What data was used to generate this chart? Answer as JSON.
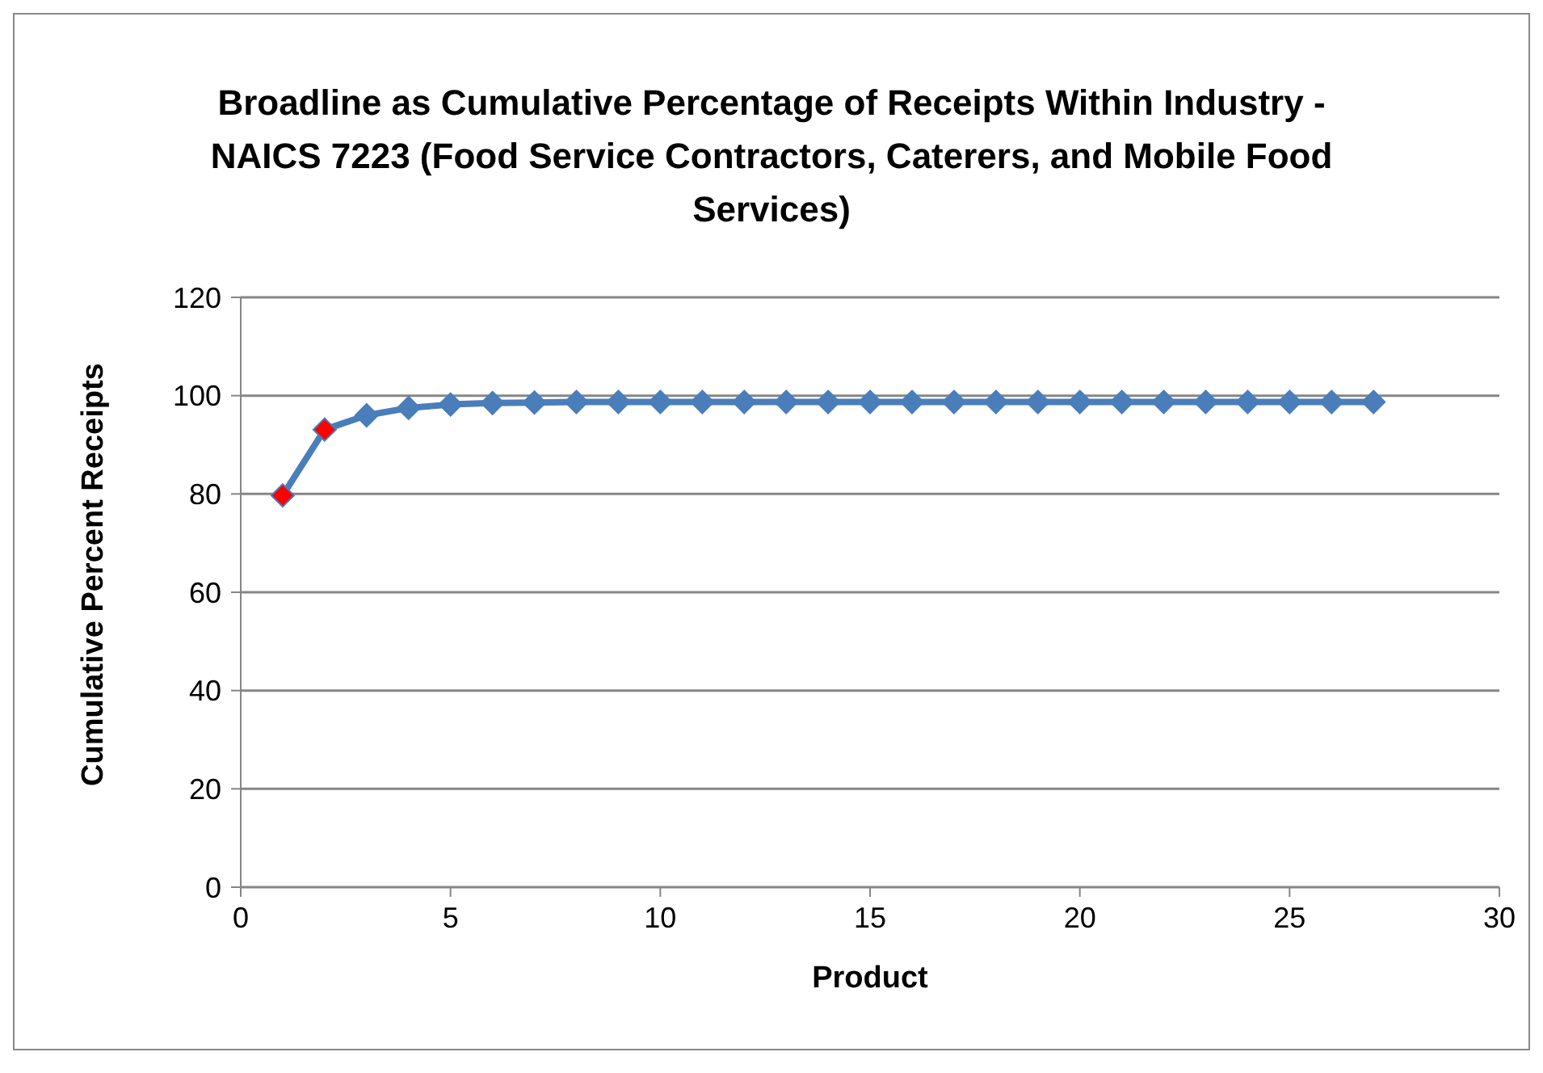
{
  "chart_data": {
    "type": "line",
    "title": "Broadline as Cumulative Percentage of Receipts Within Industry - NAICS 7223 (Food Service Contractors, Caterers, and Mobile Food Services)",
    "xlabel": "Product",
    "ylabel": "Cumulative Percent Receipts",
    "x": [
      1,
      2,
      3,
      4,
      5,
      6,
      7,
      8,
      9,
      10,
      11,
      12,
      13,
      14,
      15,
      16,
      17,
      18,
      19,
      20,
      21,
      22,
      23,
      24,
      25,
      26,
      27
    ],
    "series": [
      {
        "color": "#4a7ebb",
        "colors": [
          "#ff0000",
          "#ff0000",
          "#4a7ebb",
          "#4a7ebb",
          "#4a7ebb",
          "#4a7ebb",
          "#4a7ebb",
          "#4a7ebb",
          "#4a7ebb",
          "#4a7ebb",
          "#4a7ebb",
          "#4a7ebb",
          "#4a7ebb",
          "#4a7ebb",
          "#4a7ebb",
          "#4a7ebb",
          "#4a7ebb",
          "#4a7ebb",
          "#4a7ebb",
          "#4a7ebb",
          "#4a7ebb",
          "#4a7ebb",
          "#4a7ebb",
          "#4a7ebb",
          "#4a7ebb",
          "#4a7ebb",
          "#4a7ebb"
        ],
        "values": [
          79.7,
          93.1,
          96,
          97.5,
          98.2,
          98.5,
          98.6,
          98.7,
          98.7,
          98.7,
          98.7,
          98.7,
          98.7,
          98.7,
          98.7,
          98.7,
          98.7,
          98.7,
          98.7,
          98.7,
          98.7,
          98.7,
          98.7,
          98.7,
          98.7,
          98.7,
          98.7
        ]
      }
    ],
    "xlim": [
      0,
      30
    ],
    "xticks": [
      0,
      5,
      10,
      15,
      20,
      25,
      30
    ],
    "ylim": [
      0,
      120
    ],
    "yticks": [
      0,
      20,
      40,
      60,
      80,
      100,
      120
    ],
    "grid": "y",
    "legend": false,
    "marker": "diamond",
    "line_style": "solid"
  }
}
